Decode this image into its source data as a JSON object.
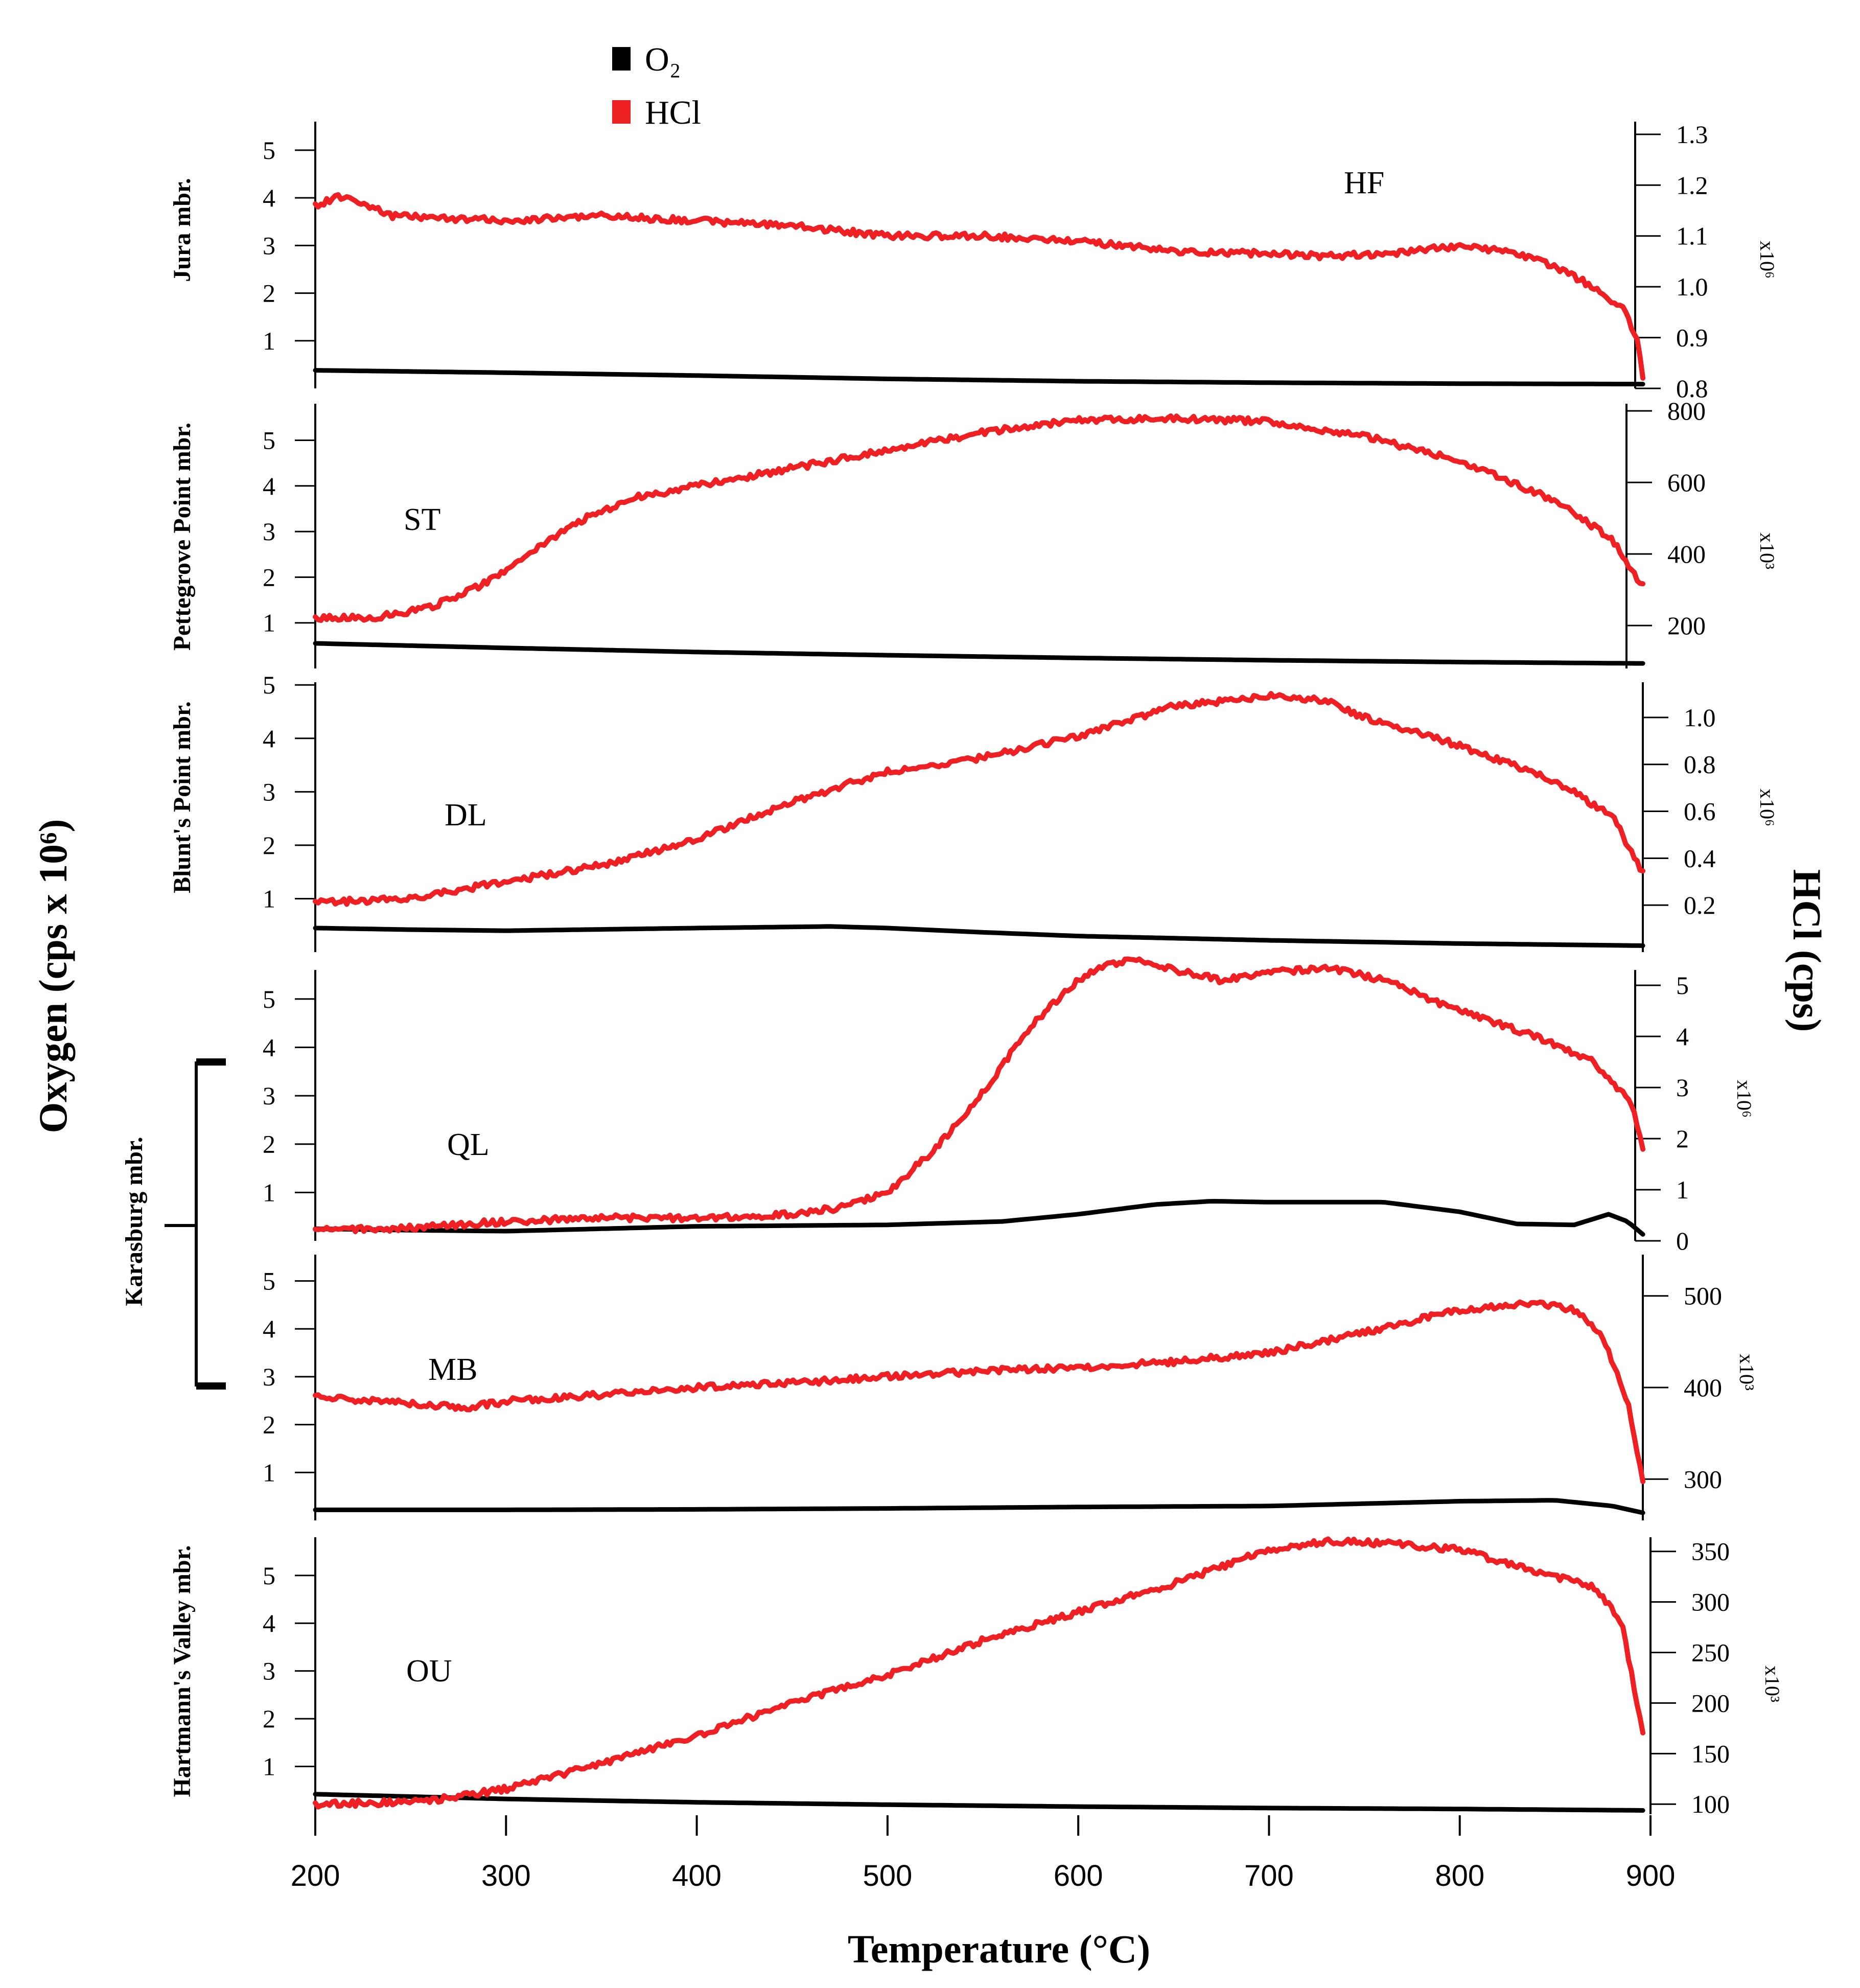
{
  "chart_data": {
    "type": "line",
    "title": "",
    "xlabel": "Temperature (°C)",
    "ylabel_left": "Oxygen (cps x 10⁶)",
    "ylabel_right": "HCl (cps)",
    "xlim": [
      200,
      900
    ],
    "x_ticks": [
      200,
      300,
      400,
      500,
      600,
      700,
      800,
      900
    ],
    "legend": [
      {
        "name": "O₂",
        "color": "#000000"
      },
      {
        "name": "HCl",
        "color": "#ee2024"
      }
    ],
    "colors": {
      "o2": "#000000",
      "hcl": "#ee2024"
    },
    "panels": [
      {
        "sample": "HF",
        "member": "Jura mbr.",
        "left_ticks": [
          1,
          2,
          3,
          4,
          5
        ],
        "left_lim": [
          0,
          5.6
        ],
        "right_ticks": [
          "0.8",
          "0.9",
          "1.0",
          "1.1",
          "1.2",
          "1.3"
        ],
        "right_tick_values": [
          0.8,
          0.9,
          1.0,
          1.1,
          1.2,
          1.3
        ],
        "right_lim": [
          0.8,
          1.325
        ],
        "right_scale": "x10⁶",
        "hcl_x": [
          200,
          215,
          240,
          300,
          350,
          400,
          450,
          500,
          550,
          600,
          650,
          700,
          730,
          760,
          800,
          825,
          850,
          870,
          885,
          893,
          897
        ],
        "hcl_y": [
          1.16,
          1.18,
          1.14,
          1.13,
          1.14,
          1.13,
          1.12,
          1.1,
          1.1,
          1.09,
          1.07,
          1.065,
          1.06,
          1.065,
          1.08,
          1.07,
          1.04,
          1.0,
          0.96,
          0.9,
          0.8
        ],
        "o2_x": [
          200,
          300,
          400,
          500,
          600,
          700,
          800,
          897
        ],
        "o2_y": [
          0.38,
          0.33,
          0.27,
          0.2,
          0.15,
          0.12,
          0.1,
          0.09
        ]
      },
      {
        "sample": "ST",
        "member": "Pettegrove Point mbr.",
        "left_ticks": [
          1,
          2,
          3,
          4,
          5
        ],
        "left_lim": [
          0,
          5.8
        ],
        "right_ticks": [
          "200",
          "400",
          "600",
          "800"
        ],
        "right_tick_values": [
          200,
          400,
          600,
          800
        ],
        "right_lim": [
          80,
          820
        ],
        "right_scale": "x10³",
        "hcl_x": [
          200,
          230,
          260,
          290,
          320,
          345,
          370,
          400,
          450,
          500,
          550,
          600,
          650,
          700,
          750,
          800,
          850,
          880,
          897
        ],
        "hcl_y": [
          220,
          222,
          250,
          320,
          430,
          510,
          560,
          590,
          640,
          690,
          740,
          775,
          780,
          770,
          730,
          660,
          550,
          440,
          300
        ],
        "o2_x": [
          200,
          300,
          400,
          500,
          600,
          700,
          800,
          897
        ],
        "o2_y": [
          0.55,
          0.45,
          0.36,
          0.29,
          0.23,
          0.18,
          0.14,
          0.11
        ]
      },
      {
        "sample": "DL",
        "member": "Blunt's Point mbr.",
        "left_ticks": [
          1,
          2,
          3,
          4,
          5
        ],
        "left_lim": [
          0,
          5.05
        ],
        "right_ticks": [
          "0.2",
          "0.4",
          "0.6",
          "0.8",
          "1.0"
        ],
        "right_tick_values": [
          0.2,
          0.4,
          0.6,
          0.8,
          1.0
        ],
        "right_lim": [
          0.0,
          1.15
        ],
        "right_scale": "x10⁶",
        "hcl_x": [
          200,
          250,
          300,
          350,
          400,
          450,
          500,
          550,
          600,
          650,
          700,
          730,
          750,
          800,
          850,
          880,
          897
        ],
        "hcl_y": [
          0.21,
          0.23,
          0.3,
          0.37,
          0.48,
          0.64,
          0.77,
          0.83,
          0.92,
          1.05,
          1.09,
          1.07,
          1.0,
          0.88,
          0.73,
          0.58,
          0.32
        ],
        "o2_x": [
          200,
          250,
          300,
          400,
          470,
          500,
          550,
          600,
          700,
          800,
          897
        ],
        "o2_y": [
          0.45,
          0.42,
          0.4,
          0.45,
          0.48,
          0.45,
          0.37,
          0.3,
          0.22,
          0.16,
          0.12
        ]
      },
      {
        "sample": "QL",
        "member": "Karasburg mbr.",
        "left_ticks": [
          1,
          2,
          3,
          4,
          5
        ],
        "left_lim": [
          0,
          5.6
        ],
        "right_ticks": [
          "0",
          "1",
          "2",
          "3",
          "4",
          "5"
        ],
        "right_tick_values": [
          0,
          1,
          2,
          3,
          4,
          5
        ],
        "right_lim": [
          0,
          5.3
        ],
        "right_scale": "x10⁶",
        "hcl_x": [
          200,
          250,
          300,
          350,
          400,
          450,
          475,
          500,
          525,
          550,
          575,
          600,
          615,
          632,
          650,
          675,
          700,
          730,
          760,
          800,
          840,
          870,
          890,
          897
        ],
        "hcl_y": [
          0.2,
          0.25,
          0.38,
          0.45,
          0.45,
          0.52,
          0.65,
          0.95,
          1.8,
          2.9,
          4.2,
          5.1,
          5.42,
          5.5,
          5.3,
          5.1,
          5.25,
          5.35,
          5.1,
          4.5,
          4.0,
          3.5,
          2.7,
          1.6
        ],
        "o2_x": [
          200,
          250,
          300,
          400,
          500,
          560,
          600,
          640,
          670,
          700,
          760,
          800,
          830,
          860,
          878,
          888,
          897
        ],
        "o2_y": [
          0.25,
          0.22,
          0.2,
          0.3,
          0.33,
          0.4,
          0.55,
          0.75,
          0.82,
          0.8,
          0.8,
          0.6,
          0.35,
          0.33,
          0.55,
          0.4,
          0.1
        ]
      },
      {
        "sample": "MB",
        "member": "",
        "left_ticks": [
          1,
          2,
          3,
          4,
          5
        ],
        "left_lim": [
          0,
          5.55
        ],
        "right_ticks": [
          "300",
          "400",
          "500"
        ],
        "right_tick_values": [
          300,
          400,
          500
        ],
        "right_lim": [
          255,
          545
        ],
        "right_scale": "x10³",
        "hcl_x": [
          200,
          250,
          280,
          300,
          350,
          400,
          450,
          500,
          550,
          600,
          650,
          700,
          750,
          800,
          820,
          840,
          860,
          875,
          888,
          897
        ],
        "hcl_y": [
          390,
          382,
          378,
          385,
          392,
          400,
          405,
          412,
          418,
          422,
          428,
          438,
          460,
          485,
          488,
          492,
          485,
          455,
          385,
          285
        ],
        "o2_x": [
          200,
          300,
          400,
          500,
          600,
          700,
          800,
          850,
          880,
          897
        ],
        "o2_y": [
          0.22,
          0.22,
          0.23,
          0.25,
          0.28,
          0.3,
          0.4,
          0.42,
          0.3,
          0.15
        ]
      },
      {
        "sample": "OU",
        "member": "Hartmann's Valley mbr.",
        "left_ticks": [
          1,
          2,
          3,
          4,
          5
        ],
        "left_lim": [
          0,
          5.8
        ],
        "right_ticks": [
          "100",
          "150",
          "200",
          "250",
          "300",
          "350"
        ],
        "right_tick_values": [
          100,
          150,
          200,
          250,
          300,
          350
        ],
        "right_lim": [
          90,
          364
        ],
        "right_scale": "x10³",
        "hcl_x": [
          200,
          250,
          270,
          300,
          350,
          400,
          450,
          500,
          550,
          600,
          650,
          700,
          730,
          760,
          800,
          840,
          870,
          885,
          897
        ],
        "hcl_y": [
          100,
          102,
          106,
          115,
          140,
          168,
          200,
          228,
          262,
          290,
          318,
          352,
          360,
          358,
          352,
          330,
          315,
          280,
          160
        ],
        "o2_x": [
          200,
          300,
          400,
          500,
          600,
          700,
          800,
          897
        ],
        "o2_y": [
          0.42,
          0.32,
          0.25,
          0.2,
          0.16,
          0.13,
          0.11,
          0.08
        ]
      }
    ]
  }
}
